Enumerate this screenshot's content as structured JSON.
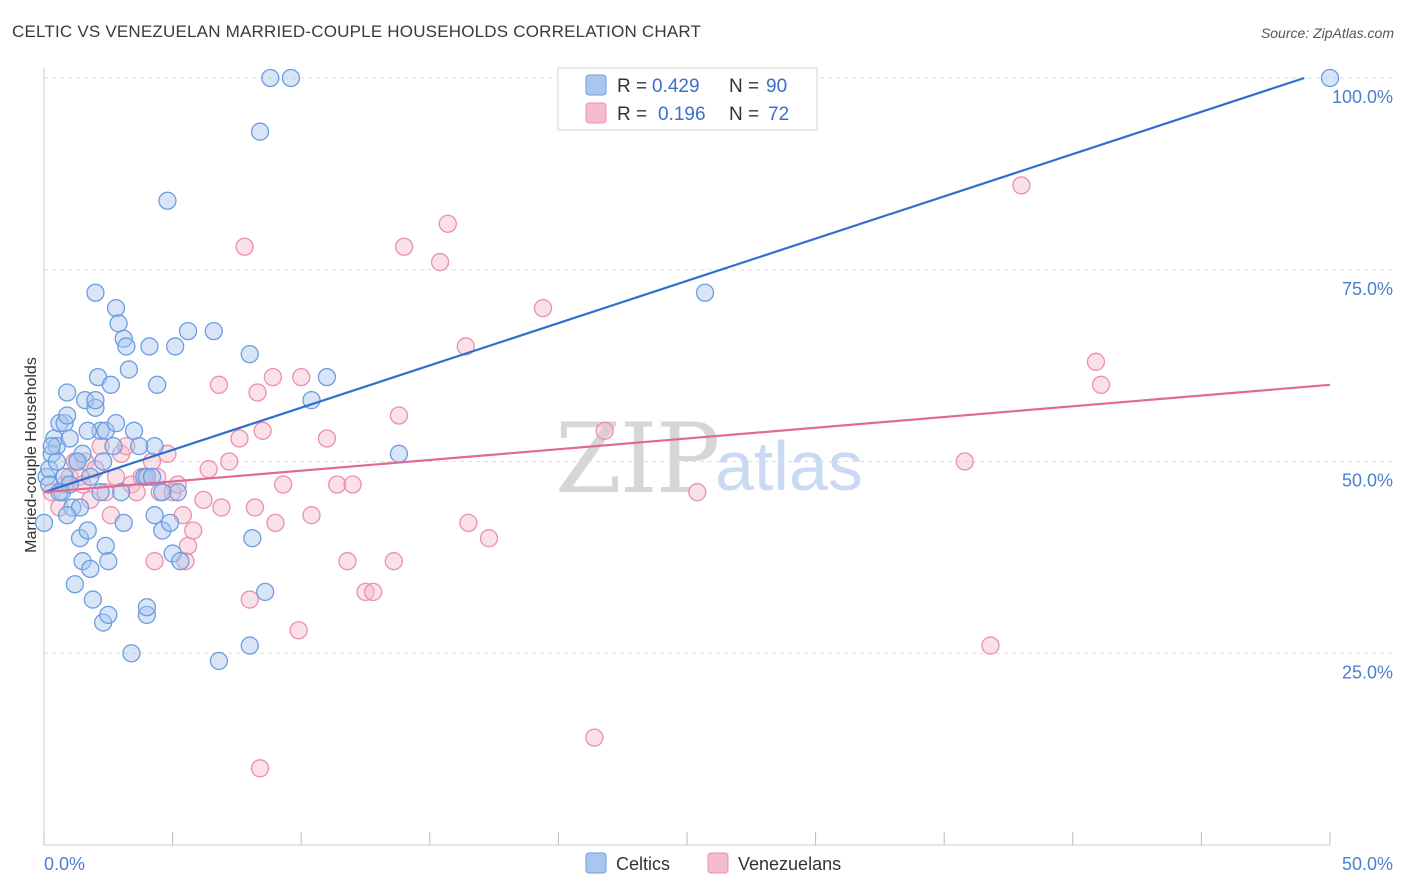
{
  "title": "CELTIC VS VENEZUELAN MARRIED-COUPLE HOUSEHOLDS CORRELATION CHART",
  "source": "Source: ZipAtlas.com",
  "watermark": {
    "zip": "ZIP",
    "atlas": "atlas"
  },
  "colors": {
    "celtics_fill": "#a9c6ee",
    "celtics_stroke": "#6b9de0",
    "celtics_line": "#2f6fcf",
    "venezuelans_fill": "#f5bccd",
    "venezuelans_stroke": "#ec8fab",
    "venezuelans_line": "#e06a94",
    "grid": "#dddddd",
    "tick_text": "#4a7fd0"
  },
  "chart_data": {
    "type": "scatter",
    "title": "CELTIC VS VENEZUELAN MARRIED-COUPLE HOUSEHOLDS CORRELATION CHART",
    "xlabel": "",
    "ylabel": "Married-couple Households",
    "xlim": [
      0,
      50
    ],
    "ylim": [
      0,
      103
    ],
    "x_tick_labels": [
      "0.0%",
      "50.0%"
    ],
    "y_ticks": [
      25,
      50,
      75,
      100
    ],
    "y_tick_labels": [
      "25.0%",
      "50.0%",
      "75.0%",
      "100.0%"
    ],
    "legend_top": [
      {
        "series": "Celtics",
        "r_label": "R =",
        "r": "0.429",
        "n_label": "N =",
        "n": "90"
      },
      {
        "series": "Venezuelans",
        "r_label": "R =",
        "r": "0.196",
        "n_label": "N =",
        "n": "72"
      }
    ],
    "legend_bottom": [
      "Celtics",
      "Venezuelans"
    ],
    "trend_lines": [
      {
        "series": "Celtics",
        "x": [
          0,
          49
        ],
        "y": [
          46,
          100
        ]
      },
      {
        "series": "Venezuelans",
        "x": [
          0,
          50
        ],
        "y": [
          46,
          60
        ]
      }
    ],
    "series": [
      {
        "name": "Celtics",
        "points": [
          [
            0.0,
            42
          ],
          [
            0.1,
            48
          ],
          [
            0.2,
            49
          ],
          [
            0.2,
            47
          ],
          [
            0.3,
            51
          ],
          [
            0.4,
            53
          ],
          [
            0.5,
            52
          ],
          [
            0.5,
            50
          ],
          [
            0.6,
            55
          ],
          [
            0.7,
            46
          ],
          [
            0.8,
            48
          ],
          [
            0.8,
            55
          ],
          [
            0.9,
            56
          ],
          [
            0.9,
            59
          ],
          [
            1.0,
            53
          ],
          [
            1.1,
            44
          ],
          [
            1.2,
            34
          ],
          [
            1.3,
            50
          ],
          [
            1.4,
            44
          ],
          [
            1.4,
            40
          ],
          [
            1.5,
            37
          ],
          [
            1.5,
            51
          ],
          [
            1.6,
            58
          ],
          [
            1.7,
            41
          ],
          [
            1.8,
            48
          ],
          [
            1.8,
            36
          ],
          [
            1.9,
            32
          ],
          [
            2.0,
            72
          ],
          [
            2.0,
            57
          ],
          [
            2.0,
            58
          ],
          [
            2.1,
            61
          ],
          [
            2.2,
            54
          ],
          [
            2.3,
            29
          ],
          [
            2.3,
            50
          ],
          [
            2.4,
            39
          ],
          [
            2.4,
            54
          ],
          [
            2.5,
            30
          ],
          [
            2.5,
            37
          ],
          [
            2.6,
            60
          ],
          [
            2.7,
            52
          ],
          [
            2.8,
            70
          ],
          [
            2.9,
            68
          ],
          [
            3.0,
            46
          ],
          [
            3.1,
            42
          ],
          [
            3.1,
            66
          ],
          [
            3.2,
            65
          ],
          [
            3.3,
            62
          ],
          [
            3.4,
            25
          ],
          [
            3.5,
            54
          ],
          [
            3.9,
            48
          ],
          [
            4.0,
            30
          ],
          [
            4.0,
            31
          ],
          [
            4.0,
            48
          ],
          [
            4.1,
            65
          ],
          [
            4.2,
            48
          ],
          [
            4.3,
            52
          ],
          [
            4.3,
            43
          ],
          [
            4.4,
            60
          ],
          [
            4.6,
            41
          ],
          [
            4.8,
            84
          ],
          [
            4.9,
            42
          ],
          [
            5.0,
            38
          ],
          [
            5.1,
            65
          ],
          [
            5.2,
            46
          ],
          [
            5.3,
            37
          ],
          [
            5.6,
            67
          ],
          [
            6.6,
            67
          ],
          [
            6.8,
            24
          ],
          [
            8.0,
            64
          ],
          [
            8.1,
            40
          ],
          [
            8.0,
            26
          ],
          [
            8.4,
            93
          ],
          [
            8.6,
            33
          ],
          [
            8.8,
            100
          ],
          [
            9.6,
            100
          ],
          [
            10.4,
            58
          ],
          [
            11.0,
            61
          ],
          [
            13.8,
            51
          ],
          [
            25.7,
            72
          ],
          [
            50.0,
            100
          ],
          [
            1.0,
            47
          ],
          [
            0.6,
            46
          ],
          [
            1.7,
            54
          ],
          [
            2.2,
            46
          ],
          [
            3.7,
            52
          ],
          [
            0.3,
            52
          ],
          [
            0.9,
            43
          ],
          [
            2.8,
            55
          ],
          [
            4.6,
            46
          ],
          [
            1.3,
            50
          ]
        ]
      },
      {
        "name": "Venezuelans",
        "points": [
          [
            0.3,
            46
          ],
          [
            0.6,
            44
          ],
          [
            0.8,
            47
          ],
          [
            1.0,
            48
          ],
          [
            1.2,
            50
          ],
          [
            1.4,
            48
          ],
          [
            1.6,
            50
          ],
          [
            1.8,
            45
          ],
          [
            2.0,
            49
          ],
          [
            2.2,
            52
          ],
          [
            2.4,
            46
          ],
          [
            2.6,
            43
          ],
          [
            2.8,
            48
          ],
          [
            3.0,
            51
          ],
          [
            3.2,
            52
          ],
          [
            3.4,
            47
          ],
          [
            3.6,
            46
          ],
          [
            3.8,
            48
          ],
          [
            4.0,
            48
          ],
          [
            4.2,
            50
          ],
          [
            4.3,
            37
          ],
          [
            4.5,
            46
          ],
          [
            4.8,
            51
          ],
          [
            5.0,
            46
          ],
          [
            5.2,
            47
          ],
          [
            5.4,
            43
          ],
          [
            5.5,
            37
          ],
          [
            5.6,
            39
          ],
          [
            5.8,
            41
          ],
          [
            6.2,
            45
          ],
          [
            6.4,
            49
          ],
          [
            6.8,
            60
          ],
          [
            6.9,
            44
          ],
          [
            7.2,
            50
          ],
          [
            7.6,
            53
          ],
          [
            7.8,
            78
          ],
          [
            8.0,
            32
          ],
          [
            8.2,
            44
          ],
          [
            8.3,
            59
          ],
          [
            8.4,
            10
          ],
          [
            8.5,
            54
          ],
          [
            8.9,
            61
          ],
          [
            9.0,
            42
          ],
          [
            9.3,
            47
          ],
          [
            9.9,
            28
          ],
          [
            10.0,
            61
          ],
          [
            10.4,
            43
          ],
          [
            11.0,
            53
          ],
          [
            11.4,
            47
          ],
          [
            11.8,
            37
          ],
          [
            12.0,
            47
          ],
          [
            12.5,
            33
          ],
          [
            12.8,
            33
          ],
          [
            13.6,
            37
          ],
          [
            13.8,
            56
          ],
          [
            14.0,
            78
          ],
          [
            15.4,
            76
          ],
          [
            15.7,
            81
          ],
          [
            16.4,
            65
          ],
          [
            16.5,
            42
          ],
          [
            17.3,
            40
          ],
          [
            19.4,
            70
          ],
          [
            21.4,
            14
          ],
          [
            21.8,
            54
          ],
          [
            25.4,
            46
          ],
          [
            35.8,
            50
          ],
          [
            36.8,
            26
          ],
          [
            38.0,
            86
          ],
          [
            40.9,
            63
          ],
          [
            41.1,
            60
          ],
          [
            1.5,
            47
          ],
          [
            4.4,
            48
          ]
        ]
      }
    ]
  }
}
